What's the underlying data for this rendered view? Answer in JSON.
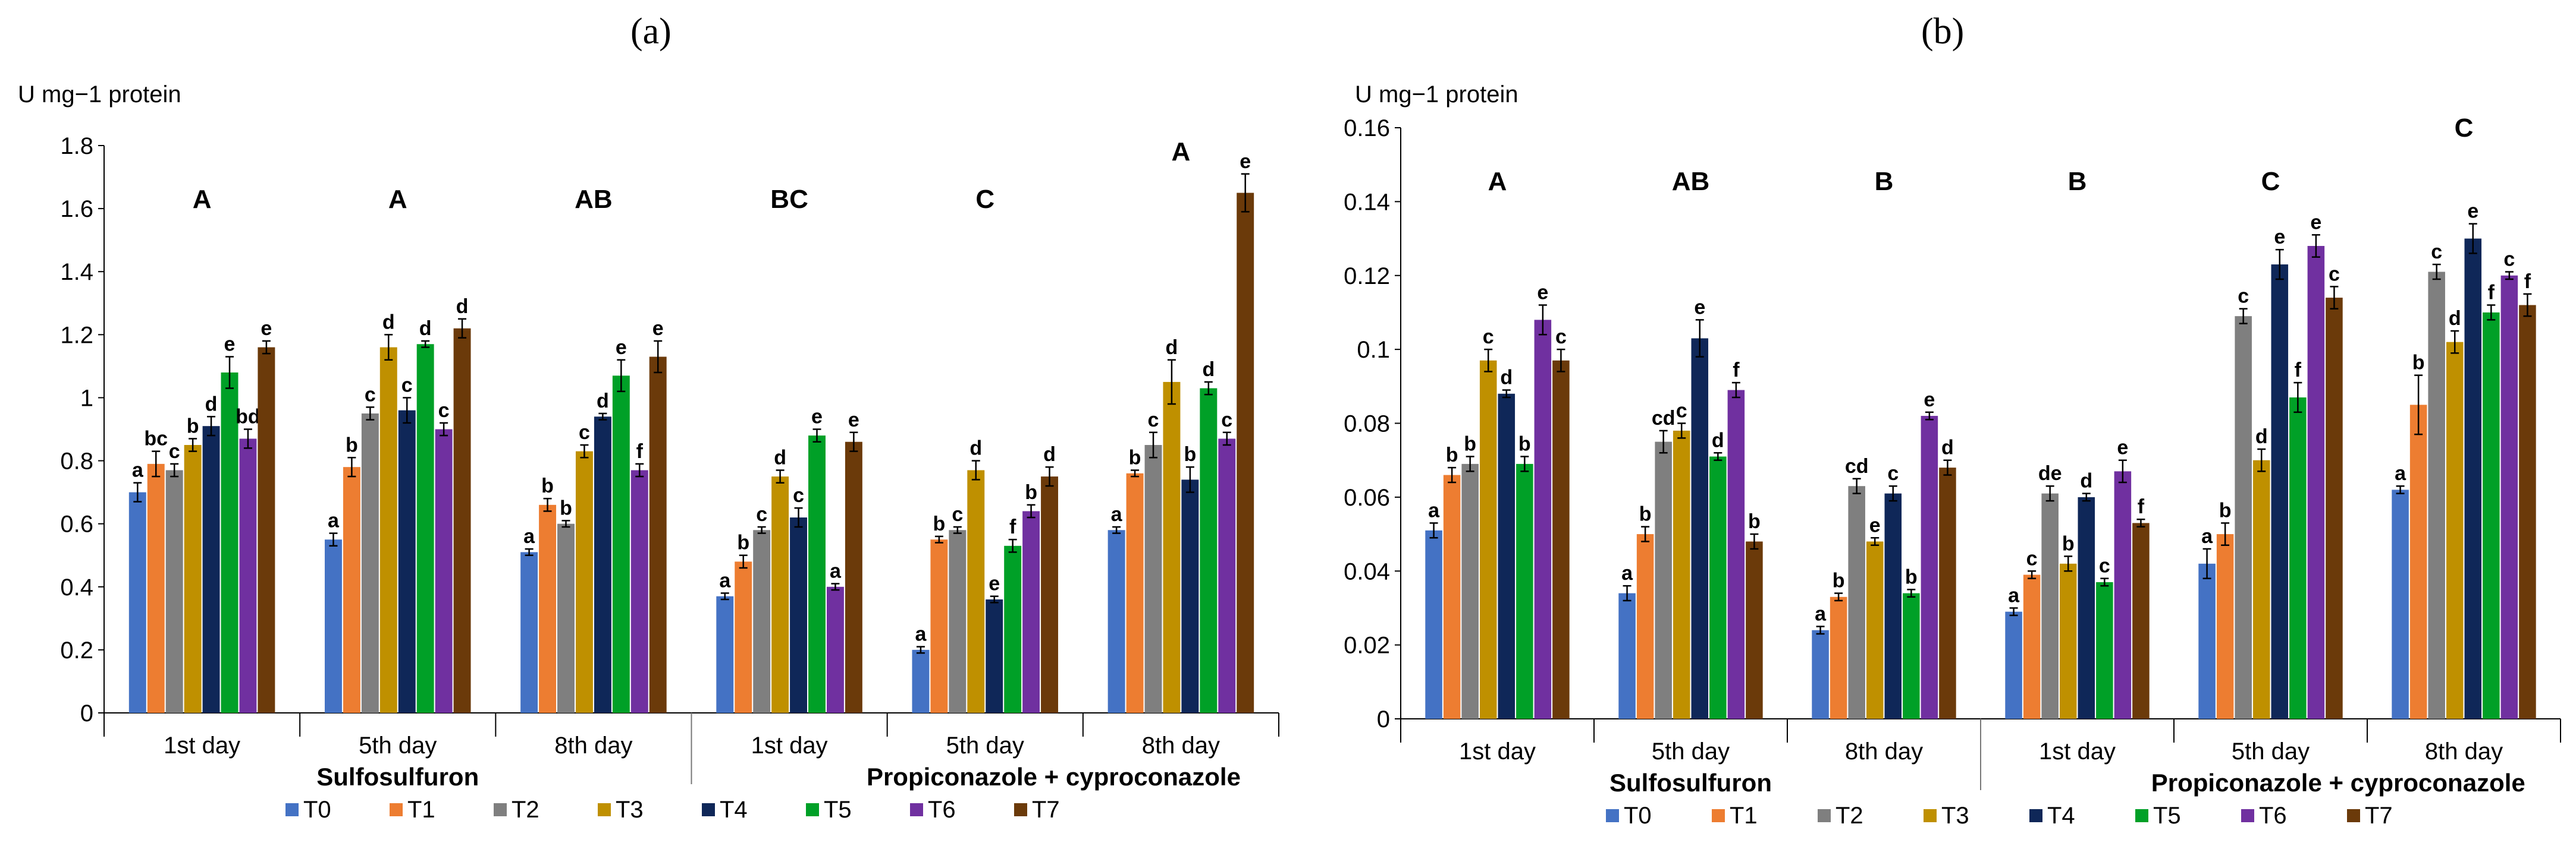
{
  "colors": {
    "T0": "#4472C4",
    "T1": "#ED7D31",
    "T2": "#7F7F7F",
    "T3": "#BF9000",
    "T4": "#0F2758",
    "T5": "#00A027",
    "T6": "#7030A0",
    "T7": "#6B3A0A"
  },
  "chart_data": [
    {
      "panel": "(a)",
      "type": "bar",
      "ylabel": "U mg−1 protein",
      "ylim": [
        0,
        1.8
      ],
      "yticks": [
        "0",
        "0.2",
        "0.4",
        "0.6",
        "0.8",
        "1",
        "1.2",
        "1.4",
        "1.6",
        "1.8"
      ],
      "categories": [
        "1st day",
        "5th day",
        "8th day",
        "1st day",
        "5th day",
        "8th day"
      ],
      "groups": [
        "Sulfosulfuron",
        "Propiconazole + cyproconazole"
      ],
      "group_letters": [
        "A",
        "A",
        "AB",
        "BC",
        "C",
        "A"
      ],
      "series": [
        {
          "name": "T0",
          "values": [
            0.7,
            0.55,
            0.51,
            0.37,
            0.2,
            0.58
          ],
          "errors": [
            0.03,
            0.02,
            0.01,
            0.01,
            0.01,
            0.01
          ],
          "letters": [
            "a",
            "a",
            "a",
            "a",
            "a",
            "a"
          ]
        },
        {
          "name": "T1",
          "values": [
            0.79,
            0.78,
            0.66,
            0.48,
            0.55,
            0.76
          ],
          "errors": [
            0.04,
            0.03,
            0.02,
            0.02,
            0.01,
            0.01
          ],
          "letters": [
            "bc",
            "b",
            "b",
            "b",
            "b",
            "b"
          ]
        },
        {
          "name": "T2",
          "values": [
            0.77,
            0.95,
            0.6,
            0.58,
            0.58,
            0.85
          ],
          "errors": [
            0.02,
            0.02,
            0.01,
            0.01,
            0.01,
            0.04
          ],
          "letters": [
            "c",
            "c",
            "b",
            "c",
            "c",
            "c"
          ]
        },
        {
          "name": "T3",
          "values": [
            0.85,
            1.16,
            0.83,
            0.75,
            0.77,
            1.05
          ],
          "errors": [
            0.02,
            0.04,
            0.02,
            0.02,
            0.03,
            0.07
          ],
          "letters": [
            "b",
            "d",
            "c",
            "d",
            "d",
            "d"
          ]
        },
        {
          "name": "T4",
          "values": [
            0.91,
            0.96,
            0.94,
            0.62,
            0.36,
            0.74
          ],
          "errors": [
            0.03,
            0.04,
            0.01,
            0.03,
            0.01,
            0.04
          ],
          "letters": [
            "d",
            "c",
            "d",
            "c",
            "e",
            "b"
          ]
        },
        {
          "name": "T5",
          "values": [
            1.08,
            1.17,
            1.07,
            0.88,
            0.53,
            1.03
          ],
          "errors": [
            0.05,
            0.01,
            0.05,
            0.02,
            0.02,
            0.02
          ],
          "letters": [
            "e",
            "d",
            "e",
            "e",
            "f",
            "d"
          ]
        },
        {
          "name": "T6",
          "values": [
            0.87,
            0.9,
            0.77,
            0.4,
            0.64,
            0.87
          ],
          "errors": [
            0.03,
            0.02,
            0.02,
            0.01,
            0.02,
            0.02
          ],
          "letters": [
            "bd",
            "c",
            "f",
            "a",
            "b",
            "c"
          ]
        },
        {
          "name": "T7",
          "values": [
            1.16,
            1.22,
            1.13,
            0.86,
            0.75,
            1.65
          ],
          "errors": [
            0.02,
            0.03,
            0.05,
            0.03,
            0.03,
            0.06
          ],
          "letters": [
            "e",
            "d",
            "e",
            "e",
            "d",
            "e"
          ]
        }
      ]
    },
    {
      "panel": "(b)",
      "type": "bar",
      "ylabel": "U mg−1 protein",
      "ylim": [
        0,
        0.16
      ],
      "yticks": [
        "0",
        "0.02",
        "0.04",
        "0.06",
        "0.08",
        "0.1",
        "0.12",
        "0.14",
        "0.16"
      ],
      "categories": [
        "1st day",
        "5th day",
        "8th day",
        "1st day",
        "5th day",
        "8th day"
      ],
      "groups": [
        "Sulfosulfuron",
        "Propiconazole + cyproconazole"
      ],
      "group_letters": [
        "A",
        "AB",
        "B",
        "B",
        "C",
        "C"
      ],
      "series": [
        {
          "name": "T0",
          "values": [
            0.051,
            0.034,
            0.024,
            0.029,
            0.042,
            0.062
          ],
          "errors": [
            0.002,
            0.002,
            0.001,
            0.001,
            0.004,
            0.001
          ],
          "letters": [
            "a",
            "a",
            "a",
            "a",
            "a",
            "a"
          ]
        },
        {
          "name": "T1",
          "values": [
            0.066,
            0.05,
            0.033,
            0.039,
            0.05,
            0.085
          ],
          "errors": [
            0.002,
            0.002,
            0.001,
            0.001,
            0.003,
            0.008
          ],
          "letters": [
            "b",
            "b",
            "b",
            "c",
            "b",
            "b"
          ]
        },
        {
          "name": "T2",
          "values": [
            0.069,
            0.075,
            0.063,
            0.061,
            0.109,
            0.121
          ],
          "errors": [
            0.002,
            0.003,
            0.002,
            0.002,
            0.002,
            0.002
          ],
          "letters": [
            "b",
            "cd",
            "cd",
            "de",
            "c",
            "c"
          ]
        },
        {
          "name": "T3",
          "values": [
            0.097,
            0.078,
            0.048,
            0.042,
            0.07,
            0.102
          ],
          "errors": [
            0.003,
            0.002,
            0.001,
            0.002,
            0.003,
            0.003
          ],
          "letters": [
            "c",
            "c",
            "e",
            "b",
            "d",
            "d"
          ]
        },
        {
          "name": "T4",
          "values": [
            0.088,
            0.103,
            0.061,
            0.06,
            0.123,
            0.13
          ],
          "errors": [
            0.001,
            0.005,
            0.002,
            0.001,
            0.004,
            0.004
          ],
          "letters": [
            "d",
            "e",
            "c",
            "d",
            "e",
            "e"
          ]
        },
        {
          "name": "T5",
          "values": [
            0.069,
            0.071,
            0.034,
            0.037,
            0.087,
            0.11
          ],
          "errors": [
            0.002,
            0.001,
            0.001,
            0.001,
            0.004,
            0.002
          ],
          "letters": [
            "b",
            "d",
            "b",
            "c",
            "f",
            "f"
          ]
        },
        {
          "name": "T6",
          "values": [
            0.108,
            0.089,
            0.082,
            0.067,
            0.128,
            0.12
          ],
          "errors": [
            0.004,
            0.002,
            0.001,
            0.003,
            0.003,
            0.001
          ],
          "letters": [
            "e",
            "f",
            "e",
            "e",
            "e",
            "c"
          ]
        },
        {
          "name": "T7",
          "values": [
            0.097,
            0.048,
            0.068,
            0.053,
            0.114,
            0.112
          ],
          "errors": [
            0.003,
            0.002,
            0.002,
            0.001,
            0.003,
            0.003
          ],
          "letters": [
            "c",
            "b",
            "d",
            "f",
            "c",
            "f"
          ]
        }
      ]
    }
  ]
}
